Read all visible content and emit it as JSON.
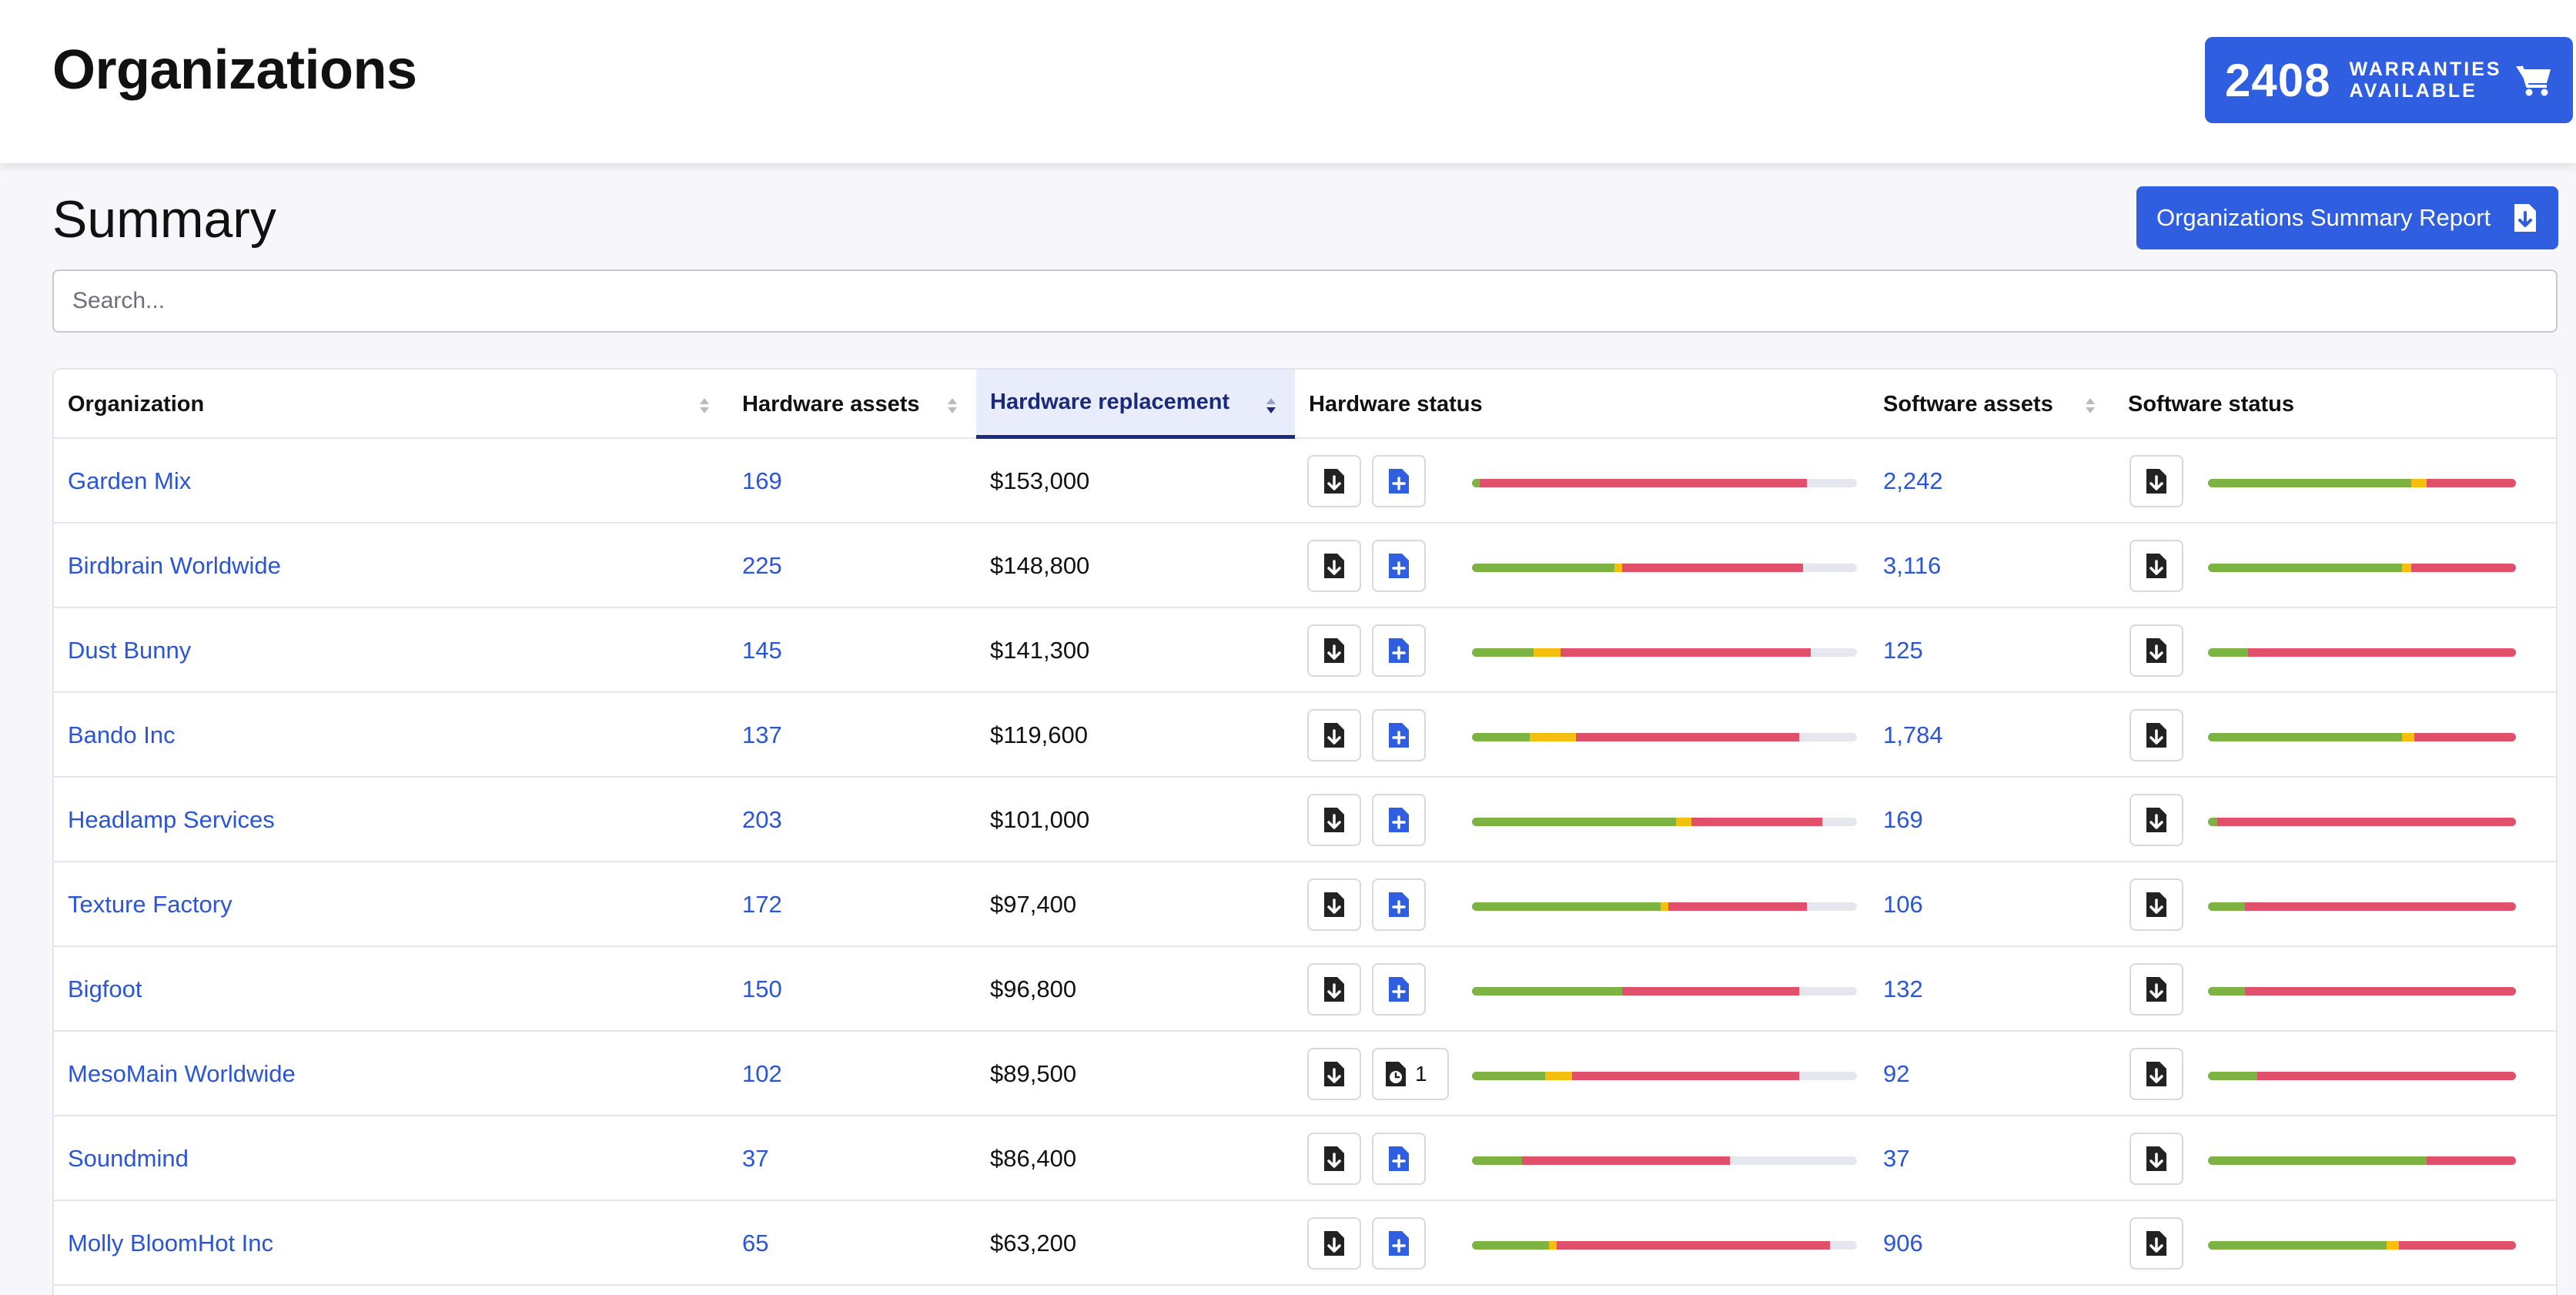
{
  "header": {
    "title": "Organizations",
    "warranty_count": "2408",
    "warranty_line1": "WARRANTIES",
    "warranty_line2": "AVAILABLE"
  },
  "summary": {
    "title": "Summary",
    "report_label": "Organizations Summary Report",
    "search_placeholder": "Search..."
  },
  "colors": {
    "accent": "#2f5fe0",
    "link": "#2a55d6",
    "status_ok": "#7cb342",
    "status_warn": "#f5bf0f",
    "status_bad": "#e0506a",
    "status_empty": "#e6e6ee"
  },
  "table": {
    "columns": [
      "Organization",
      "Hardware assets",
      "Hardware replacement",
      "Hardware status",
      "Software assets",
      "Software status"
    ],
    "sorted_column": "Hardware replacement",
    "rows": [
      {
        "org": "Garden Mix",
        "hw_assets": "169",
        "hw_replacement": "$153,000",
        "hw_action": "add",
        "hw_pending": "",
        "hw_status": [
          0.02,
          0.0,
          0.85
        ],
        "sw_assets": "2,242",
        "sw_status": [
          0.66,
          0.05,
          0.29
        ]
      },
      {
        "org": "Birdbrain Worldwide",
        "hw_assets": "225",
        "hw_replacement": "$148,800",
        "hw_action": "add",
        "hw_pending": "",
        "hw_status": [
          0.37,
          0.02,
          0.47
        ],
        "sw_assets": "3,116",
        "sw_status": [
          0.63,
          0.03,
          0.34
        ]
      },
      {
        "org": "Dust Bunny",
        "hw_assets": "145",
        "hw_replacement": "$141,300",
        "hw_action": "add",
        "hw_pending": "",
        "hw_status": [
          0.16,
          0.07,
          0.65
        ],
        "sw_assets": "125",
        "sw_status": [
          0.13,
          0.0,
          0.87
        ]
      },
      {
        "org": "Bando Inc",
        "hw_assets": "137",
        "hw_replacement": "$119,600",
        "hw_action": "add",
        "hw_pending": "",
        "hw_status": [
          0.15,
          0.12,
          0.58
        ],
        "sw_assets": "1,784",
        "sw_status": [
          0.63,
          0.04,
          0.33
        ]
      },
      {
        "org": "Headlamp Services",
        "hw_assets": "203",
        "hw_replacement": "$101,000",
        "hw_action": "add",
        "hw_pending": "",
        "hw_status": [
          0.53,
          0.04,
          0.34
        ],
        "sw_assets": "169",
        "sw_status": [
          0.03,
          0.0,
          0.97
        ]
      },
      {
        "org": "Texture Factory",
        "hw_assets": "172",
        "hw_replacement": "$97,400",
        "hw_action": "add",
        "hw_pending": "",
        "hw_status": [
          0.49,
          0.02,
          0.36
        ],
        "sw_assets": "106",
        "sw_status": [
          0.12,
          0.0,
          0.88
        ]
      },
      {
        "org": "Bigfoot",
        "hw_assets": "150",
        "hw_replacement": "$96,800",
        "hw_action": "add",
        "hw_pending": "",
        "hw_status": [
          0.39,
          0.0,
          0.46
        ],
        "sw_assets": "132",
        "sw_status": [
          0.12,
          0.0,
          0.88
        ]
      },
      {
        "org": "MesoMain Worldwide",
        "hw_assets": "102",
        "hw_replacement": "$89,500",
        "hw_action": "pending",
        "hw_pending": "1",
        "hw_status": [
          0.19,
          0.07,
          0.59
        ],
        "sw_assets": "92",
        "sw_status": [
          0.16,
          0.0,
          0.84
        ]
      },
      {
        "org": "Soundmind",
        "hw_assets": "37",
        "hw_replacement": "$86,400",
        "hw_action": "add",
        "hw_pending": "",
        "hw_status": [
          0.13,
          0.0,
          0.54
        ],
        "sw_assets": "37",
        "sw_status": [
          0.71,
          0.0,
          0.29
        ]
      },
      {
        "org": "Molly BloomHot Inc",
        "hw_assets": "65",
        "hw_replacement": "$63,200",
        "hw_action": "add",
        "hw_pending": "",
        "hw_status": [
          0.2,
          0.02,
          0.71
        ],
        "sw_assets": "906",
        "sw_status": [
          0.58,
          0.04,
          0.38
        ]
      }
    ]
  }
}
